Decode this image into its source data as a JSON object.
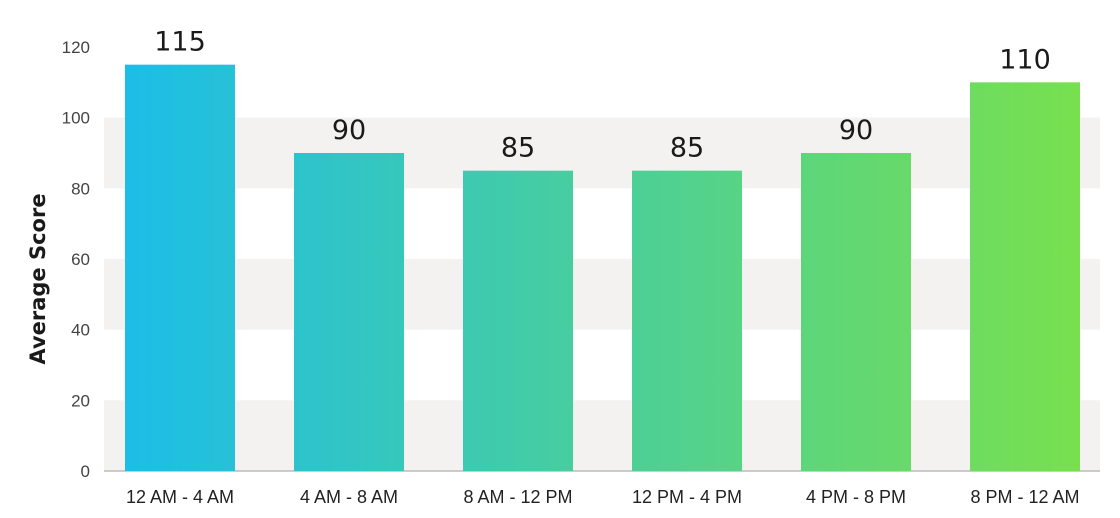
{
  "chart_data": {
    "type": "bar",
    "categories": [
      "12 AM - 4 AM",
      "4 AM - 8 AM",
      "8 AM - 12 PM",
      "12 PM - 4 PM",
      "4 PM - 8 PM",
      "8 PM - 12 AM"
    ],
    "values": [
      115,
      90,
      85,
      85,
      90,
      110
    ],
    "value_labels": [
      "115",
      "90",
      "85",
      "85",
      "90",
      "110"
    ],
    "title": "",
    "xlabel": "",
    "ylabel": "Average Score",
    "ylim": [
      0,
      120
    ],
    "yticks": [
      "0",
      "20",
      "40",
      "60",
      "80",
      "100",
      "120"
    ],
    "grid": "alternating horizontal bands",
    "legend": "none",
    "colors": {
      "gradient_start": "#1cbde8",
      "gradient_end": "#78e04e",
      "band": "#f3f2f1",
      "axis": "#bbbbbb"
    }
  }
}
